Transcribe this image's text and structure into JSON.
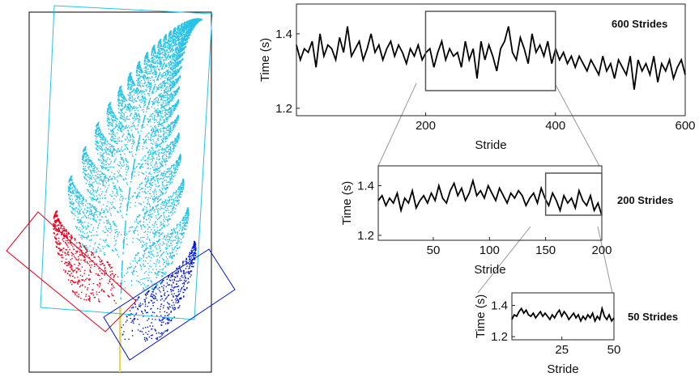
{
  "figure": {
    "fern_colors": {
      "stem": "#e8d84a",
      "main": "#27c3e6",
      "left_leaflet": "#e4001b",
      "right_leaflet": "#0018c8",
      "outline": "#000000"
    }
  },
  "chart_data": [
    {
      "type": "line",
      "title": "600 Strides",
      "xlabel": "Stride",
      "ylabel": "Time (s)",
      "xlim": [
        1,
        600
      ],
      "ylim": [
        1.18,
        1.48
      ],
      "xticks": [
        200,
        400,
        600
      ],
      "yticks": [
        1.2,
        1.4
      ],
      "zoom_box": {
        "x": [
          200,
          400
        ]
      },
      "series": [
        {
          "x_start": 1,
          "x_end": 600,
          "values": [
            1.37,
            1.33,
            1.36,
            1.35,
            1.38,
            1.31,
            1.4,
            1.34,
            1.37,
            1.36,
            1.33,
            1.39,
            1.35,
            1.42,
            1.34,
            1.36,
            1.38,
            1.33,
            1.36,
            1.4,
            1.35,
            1.37,
            1.33,
            1.36,
            1.38,
            1.34,
            1.37,
            1.35,
            1.32,
            1.36,
            1.34,
            1.37,
            1.33,
            1.35,
            1.36,
            1.31,
            1.35,
            1.38,
            1.33,
            1.36,
            1.34,
            1.35,
            1.31,
            1.38,
            1.33,
            1.36,
            1.28,
            1.38,
            1.33,
            1.37,
            1.34,
            1.3,
            1.36,
            1.38,
            1.42,
            1.35,
            1.33,
            1.39,
            1.36,
            1.32,
            1.4,
            1.35,
            1.37,
            1.34,
            1.38,
            1.32,
            1.36,
            1.33,
            1.35,
            1.32,
            1.34,
            1.31,
            1.34,
            1.32,
            1.3,
            1.33,
            1.31,
            1.29,
            1.34,
            1.3,
            1.32,
            1.28,
            1.33,
            1.31,
            1.29,
            1.34,
            1.25,
            1.33,
            1.3,
            1.32,
            1.29,
            1.34,
            1.27,
            1.32,
            1.3,
            1.33,
            1.28,
            1.31,
            1.33,
            1.29
          ]
        }
      ]
    },
    {
      "type": "line",
      "title": "200 Strides",
      "xlabel": "Stride",
      "ylabel": "Time (s)",
      "xlim": [
        1,
        200
      ],
      "ylim": [
        1.18,
        1.48
      ],
      "xticks": [
        50,
        100,
        150,
        200
      ],
      "yticks": [
        1.2,
        1.4
      ],
      "zoom_box": {
        "x": [
          150,
          200
        ]
      },
      "series": [
        {
          "x_start": 1,
          "x_end": 200,
          "values": [
            1.34,
            1.36,
            1.32,
            1.35,
            1.33,
            1.37,
            1.3,
            1.35,
            1.33,
            1.38,
            1.31,
            1.34,
            1.36,
            1.33,
            1.37,
            1.34,
            1.4,
            1.35,
            1.33,
            1.38,
            1.41,
            1.36,
            1.39,
            1.34,
            1.37,
            1.42,
            1.36,
            1.38,
            1.35,
            1.4,
            1.37,
            1.34,
            1.39,
            1.36,
            1.33,
            1.37,
            1.35,
            1.38,
            1.36,
            1.32,
            1.35,
            1.37,
            1.33,
            1.39,
            1.35,
            1.32,
            1.37,
            1.34,
            1.3,
            1.36,
            1.33,
            1.35,
            1.31,
            1.38,
            1.34,
            1.32,
            1.36,
            1.3,
            1.33,
            1.28
          ]
        }
      ]
    },
    {
      "type": "line",
      "title": "50 Strides",
      "xlabel": "Stride",
      "ylabel": "Time (s)",
      "xlim": [
        1,
        50
      ],
      "ylim": [
        1.18,
        1.48
      ],
      "xticks": [
        25,
        50
      ],
      "yticks": [
        1.2,
        1.4
      ],
      "series": [
        {
          "x_start": 1,
          "x_end": 50,
          "values": [
            1.31,
            1.34,
            1.33,
            1.36,
            1.38,
            1.35,
            1.37,
            1.34,
            1.33,
            1.35,
            1.32,
            1.34,
            1.36,
            1.33,
            1.35,
            1.33,
            1.31,
            1.34,
            1.32,
            1.35,
            1.37,
            1.33,
            1.36,
            1.34,
            1.31,
            1.33,
            1.35,
            1.32,
            1.34,
            1.3,
            1.33,
            1.31,
            1.34,
            1.32,
            1.35,
            1.3,
            1.33,
            1.31,
            1.38,
            1.33,
            1.31,
            1.34,
            1.3,
            1.32
          ]
        }
      ]
    }
  ]
}
